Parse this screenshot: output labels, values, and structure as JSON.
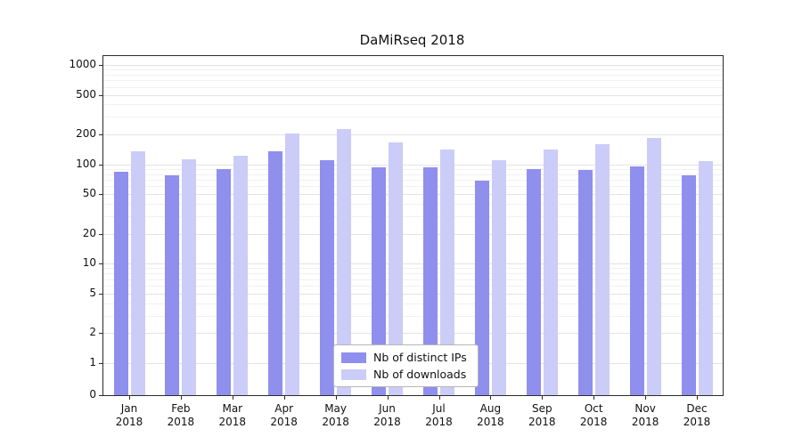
{
  "chart": {
    "title": "DaMiRseq 2018"
  },
  "chart_data": {
    "type": "bar",
    "scale": "log",
    "title": "DaMiRseq 2018",
    "xlabel": "",
    "ylabel": "",
    "months": [
      "Jan",
      "Feb",
      "Mar",
      "Apr",
      "May",
      "Jun",
      "Jul",
      "Aug",
      "Sep",
      "Oct",
      "Nov",
      "Dec"
    ],
    "year": "2018",
    "categories": [
      "Jan 2018",
      "Feb 2018",
      "Mar 2018",
      "Apr 2018",
      "May 2018",
      "Jun 2018",
      "Jul 2018",
      "Aug 2018",
      "Sep 2018",
      "Oct 2018",
      "Nov 2018",
      "Dec 2018"
    ],
    "series": [
      {
        "name": "Nb of distinct IPs",
        "color": "#8f8fee",
        "values": [
          85,
          78,
          90,
          135,
          110,
          93,
          93,
          68,
          90,
          87,
          95,
          78
        ]
      },
      {
        "name": "Nb of downloads",
        "color": "#ccccf8",
        "values": [
          135,
          112,
          122,
          205,
          225,
          165,
          140,
          110,
          140,
          160,
          183,
          107
        ]
      }
    ],
    "y_ticks": [
      0,
      1,
      2,
      5,
      10,
      20,
      50,
      100,
      200,
      500,
      1000
    ],
    "ylim": [
      0,
      1000
    ],
    "grid": true,
    "legend_position": "bottom-center-inside"
  }
}
